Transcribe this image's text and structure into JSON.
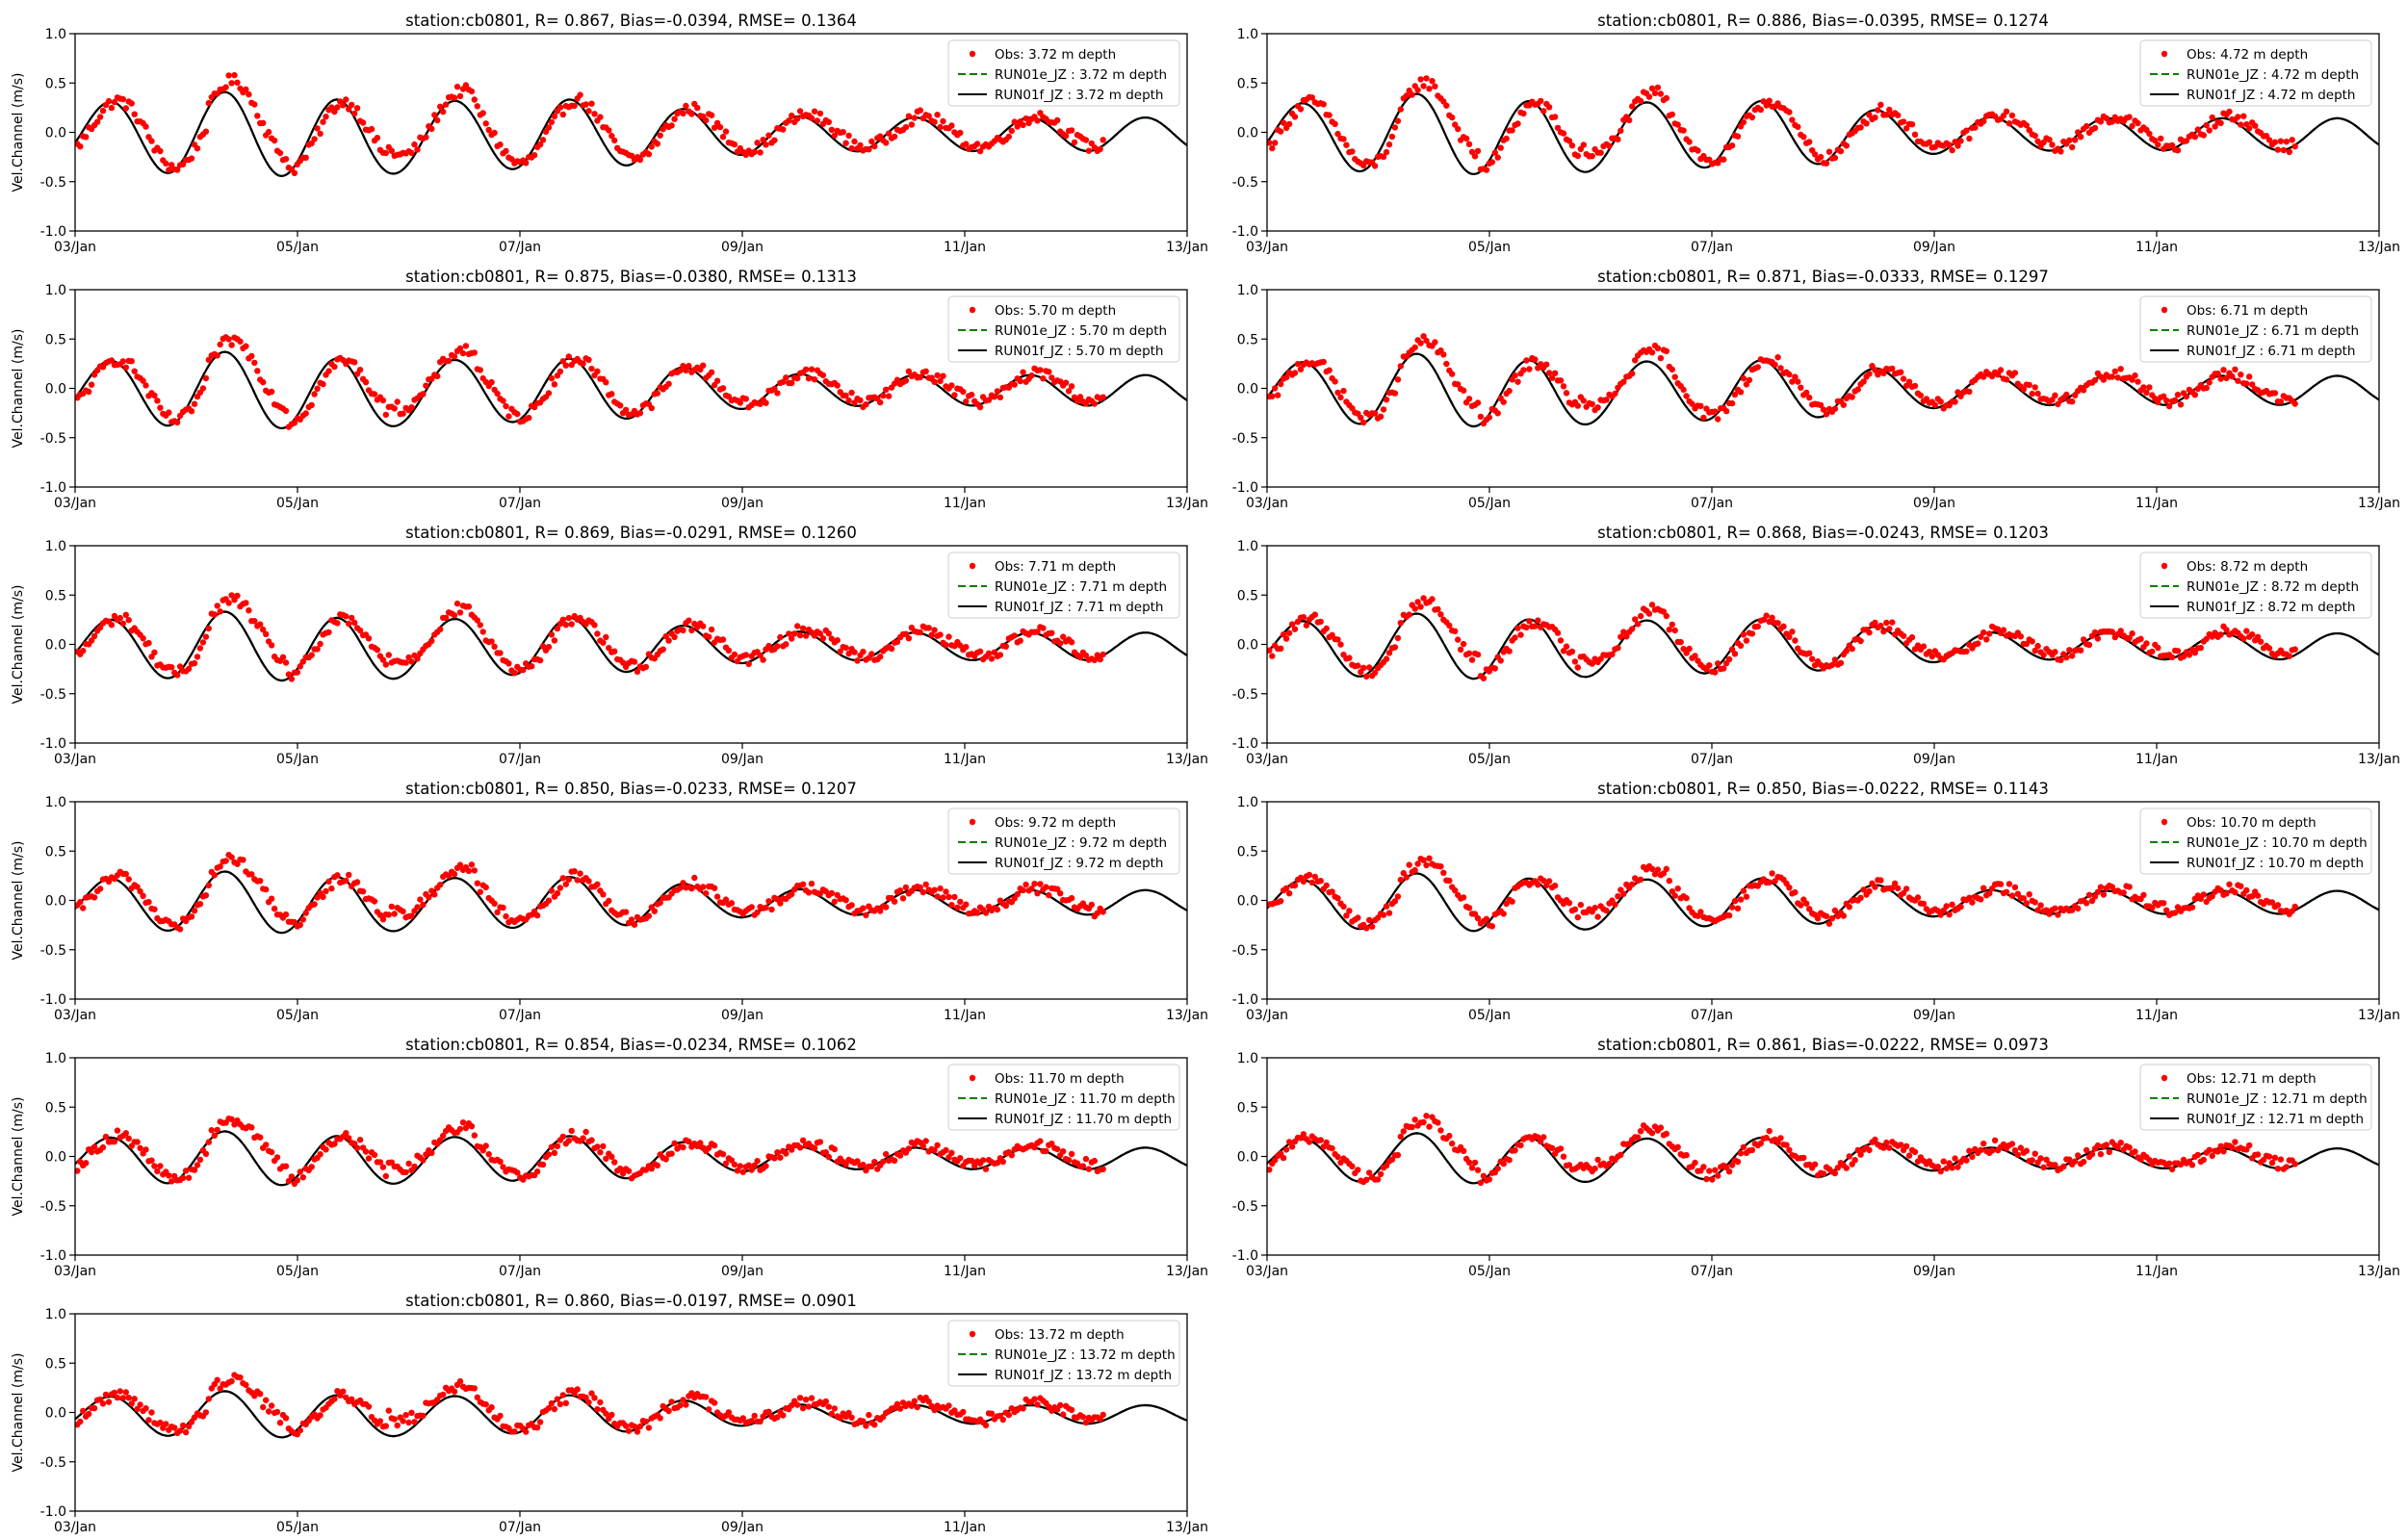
{
  "colors": {
    "obs": "#ff0000",
    "run01e": "#008000",
    "run01f": "#000000",
    "axes": "#000000"
  },
  "chart_data": [
    {
      "type": "line",
      "title": "station:cb0801, R= 0.867, Bias=-0.0394, RMSE= 0.1364",
      "xlabel": "",
      "ylabel": "Vel.Channel (m/s)",
      "xlim": [
        "2023-01-03",
        "2023-01-13"
      ],
      "ylim": [
        -1.0,
        1.0
      ],
      "x_ticks": [
        "03/Jan",
        "05/Jan",
        "07/Jan",
        "09/Jan",
        "11/Jan",
        "13/Jan"
      ],
      "y_ticks": [
        "1.0",
        "0.5",
        "0.0",
        "-0.5",
        "-1.0"
      ],
      "legend_position": "upper right",
      "grid": false,
      "depth": 3.72,
      "series": [
        {
          "name": "Obs: 3.72 m depth",
          "style": "scatter"
        },
        {
          "name": "RUN01e_JZ : 3.72 m depth",
          "style": "dashed"
        },
        {
          "name": "RUN01f_JZ : 3.72 m depth",
          "style": "solid"
        }
      ]
    },
    {
      "type": "line",
      "title": "station:cb0801, R= 0.886, Bias=-0.0395, RMSE= 0.1274",
      "xlabel": "",
      "ylabel": "",
      "xlim": [
        "2023-01-03",
        "2023-01-13"
      ],
      "ylim": [
        -1.0,
        1.0
      ],
      "x_ticks": [
        "03/Jan",
        "05/Jan",
        "07/Jan",
        "09/Jan",
        "11/Jan",
        "13/Jan"
      ],
      "y_ticks": [
        "1.0",
        "0.5",
        "0.0",
        "-0.5",
        "-1.0"
      ],
      "legend_position": "upper right",
      "grid": false,
      "depth": 4.72,
      "series": [
        {
          "name": "Obs: 4.72 m depth",
          "style": "scatter"
        },
        {
          "name": "RUN01e_JZ : 4.72 m depth",
          "style": "dashed"
        },
        {
          "name": "RUN01f_JZ : 4.72 m depth",
          "style": "solid"
        }
      ]
    },
    {
      "type": "line",
      "title": "station:cb0801, R= 0.875, Bias=-0.0380, RMSE= 0.1313",
      "xlabel": "",
      "ylabel": "Vel.Channel (m/s)",
      "xlim": [
        "2023-01-03",
        "2023-01-13"
      ],
      "ylim": [
        -1.0,
        1.0
      ],
      "x_ticks": [
        "03/Jan",
        "05/Jan",
        "07/Jan",
        "09/Jan",
        "11/Jan",
        "13/Jan"
      ],
      "y_ticks": [
        "1.0",
        "0.5",
        "0.0",
        "-0.5",
        "-1.0"
      ],
      "legend_position": "upper right",
      "grid": false,
      "depth": 5.7,
      "series": [
        {
          "name": "Obs: 5.70 m depth",
          "style": "scatter"
        },
        {
          "name": "RUN01e_JZ : 5.70 m depth",
          "style": "dashed"
        },
        {
          "name": "RUN01f_JZ : 5.70 m depth",
          "style": "solid"
        }
      ]
    },
    {
      "type": "line",
      "title": "station:cb0801, R= 0.871, Bias=-0.0333, RMSE= 0.1297",
      "xlabel": "",
      "ylabel": "",
      "xlim": [
        "2023-01-03",
        "2023-01-13"
      ],
      "ylim": [
        -1.0,
        1.0
      ],
      "x_ticks": [
        "03/Jan",
        "05/Jan",
        "07/Jan",
        "09/Jan",
        "11/Jan",
        "13/Jan"
      ],
      "y_ticks": [
        "1.0",
        "0.5",
        "0.0",
        "-0.5",
        "-1.0"
      ],
      "legend_position": "upper right",
      "grid": false,
      "depth": 6.71,
      "series": [
        {
          "name": "Obs: 6.71 m depth",
          "style": "scatter"
        },
        {
          "name": "RUN01e_JZ : 6.71 m depth",
          "style": "dashed"
        },
        {
          "name": "RUN01f_JZ : 6.71 m depth",
          "style": "solid"
        }
      ]
    },
    {
      "type": "line",
      "title": "station:cb0801, R= 0.869, Bias=-0.0291, RMSE= 0.1260",
      "xlabel": "",
      "ylabel": "Vel.Channel (m/s)",
      "xlim": [
        "2023-01-03",
        "2023-01-13"
      ],
      "ylim": [
        -1.0,
        1.0
      ],
      "x_ticks": [
        "03/Jan",
        "05/Jan",
        "07/Jan",
        "09/Jan",
        "11/Jan",
        "13/Jan"
      ],
      "y_ticks": [
        "1.0",
        "0.5",
        "0.0",
        "-0.5",
        "-1.0"
      ],
      "legend_position": "upper right",
      "grid": false,
      "depth": 7.71,
      "series": [
        {
          "name": "Obs: 7.71 m depth",
          "style": "scatter"
        },
        {
          "name": "RUN01e_JZ : 7.71 m depth",
          "style": "dashed"
        },
        {
          "name": "RUN01f_JZ : 7.71 m depth",
          "style": "solid"
        }
      ]
    },
    {
      "type": "line",
      "title": "station:cb0801, R= 0.868, Bias=-0.0243, RMSE= 0.1203",
      "xlabel": "",
      "ylabel": "",
      "xlim": [
        "2023-01-03",
        "2023-01-13"
      ],
      "ylim": [
        -1.0,
        1.0
      ],
      "x_ticks": [
        "03/Jan",
        "05/Jan",
        "07/Jan",
        "09/Jan",
        "11/Jan",
        "13/Jan"
      ],
      "y_ticks": [
        "1.0",
        "0.5",
        "0.0",
        "-0.5",
        "-1.0"
      ],
      "legend_position": "upper right",
      "grid": false,
      "depth": 8.72,
      "series": [
        {
          "name": "Obs: 8.72 m depth",
          "style": "scatter"
        },
        {
          "name": "RUN01e_JZ : 8.72 m depth",
          "style": "dashed"
        },
        {
          "name": "RUN01f_JZ : 8.72 m depth",
          "style": "solid"
        }
      ]
    },
    {
      "type": "line",
      "title": "station:cb0801, R= 0.850, Bias=-0.0233, RMSE= 0.1207",
      "xlabel": "",
      "ylabel": "Vel.Channel (m/s)",
      "xlim": [
        "2023-01-03",
        "2023-01-13"
      ],
      "ylim": [
        -1.0,
        1.0
      ],
      "x_ticks": [
        "03/Jan",
        "05/Jan",
        "07/Jan",
        "09/Jan",
        "11/Jan",
        "13/Jan"
      ],
      "y_ticks": [
        "1.0",
        "0.5",
        "0.0",
        "-0.5",
        "-1.0"
      ],
      "legend_position": "upper right",
      "grid": false,
      "depth": 9.72,
      "series": [
        {
          "name": "Obs: 9.72 m depth",
          "style": "scatter"
        },
        {
          "name": "RUN01e_JZ : 9.72 m depth",
          "style": "dashed"
        },
        {
          "name": "RUN01f_JZ : 9.72 m depth",
          "style": "solid"
        }
      ]
    },
    {
      "type": "line",
      "title": "station:cb0801, R= 0.850, Bias=-0.0222, RMSE= 0.1143",
      "xlabel": "",
      "ylabel": "",
      "xlim": [
        "2023-01-03",
        "2023-01-13"
      ],
      "ylim": [
        -1.0,
        1.0
      ],
      "x_ticks": [
        "03/Jan",
        "05/Jan",
        "07/Jan",
        "09/Jan",
        "11/Jan",
        "13/Jan"
      ],
      "y_ticks": [
        "1.0",
        "0.5",
        "0.0",
        "-0.5",
        "-1.0"
      ],
      "legend_position": "upper right",
      "grid": false,
      "depth": 10.7,
      "series": [
        {
          "name": "Obs: 10.70 m depth",
          "style": "scatter"
        },
        {
          "name": "RUN01e_JZ : 10.70 m depth",
          "style": "dashed"
        },
        {
          "name": "RUN01f_JZ : 10.70 m depth",
          "style": "solid"
        }
      ]
    },
    {
      "type": "line",
      "title": "station:cb0801, R= 0.854, Bias=-0.0234, RMSE= 0.1062",
      "xlabel": "",
      "ylabel": "Vel.Channel (m/s)",
      "xlim": [
        "2023-01-03",
        "2023-01-13"
      ],
      "ylim": [
        -1.0,
        1.0
      ],
      "x_ticks": [
        "03/Jan",
        "05/Jan",
        "07/Jan",
        "09/Jan",
        "11/Jan",
        "13/Jan"
      ],
      "y_ticks": [
        "1.0",
        "0.5",
        "0.0",
        "-0.5",
        "-1.0"
      ],
      "legend_position": "upper right",
      "grid": false,
      "depth": 11.7,
      "series": [
        {
          "name": "Obs: 11.70 m depth",
          "style": "scatter"
        },
        {
          "name": "RUN01e_JZ : 11.70 m depth",
          "style": "dashed"
        },
        {
          "name": "RUN01f_JZ : 11.70 m depth",
          "style": "solid"
        }
      ]
    },
    {
      "type": "line",
      "title": "station:cb0801, R= 0.861, Bias=-0.0222, RMSE= 0.0973",
      "xlabel": "",
      "ylabel": "",
      "xlim": [
        "2023-01-03",
        "2023-01-13"
      ],
      "ylim": [
        -1.0,
        1.0
      ],
      "x_ticks": [
        "03/Jan",
        "05/Jan",
        "07/Jan",
        "09/Jan",
        "11/Jan",
        "13/Jan"
      ],
      "y_ticks": [
        "1.0",
        "0.5",
        "0.0",
        "-0.5",
        "-1.0"
      ],
      "legend_position": "upper right",
      "grid": false,
      "depth": 12.71,
      "series": [
        {
          "name": "Obs: 12.71 m depth",
          "style": "scatter"
        },
        {
          "name": "RUN01e_JZ : 12.71 m depth",
          "style": "dashed"
        },
        {
          "name": "RUN01f_JZ : 12.71 m depth",
          "style": "solid"
        }
      ]
    },
    {
      "type": "line",
      "title": "station:cb0801, R= 0.860, Bias=-0.0197, RMSE= 0.0901",
      "xlabel": "",
      "ylabel": "Vel.Channel (m/s)",
      "xlim": [
        "2023-01-03",
        "2023-01-13"
      ],
      "ylim": [
        -1.0,
        1.0
      ],
      "x_ticks": [
        "03/Jan",
        "05/Jan",
        "07/Jan",
        "09/Jan",
        "11/Jan",
        "13/Jan"
      ],
      "y_ticks": [
        "1.0",
        "0.5",
        "0.0",
        "-0.5",
        "-1.0"
      ],
      "legend_position": "upper right",
      "grid": false,
      "depth": 13.72,
      "series": [
        {
          "name": "Obs: 13.72 m depth",
          "style": "scatter"
        },
        {
          "name": "RUN01e_JZ : 13.72 m depth",
          "style": "dashed"
        },
        {
          "name": "RUN01f_JZ : 13.72 m depth",
          "style": "solid"
        }
      ]
    }
  ]
}
